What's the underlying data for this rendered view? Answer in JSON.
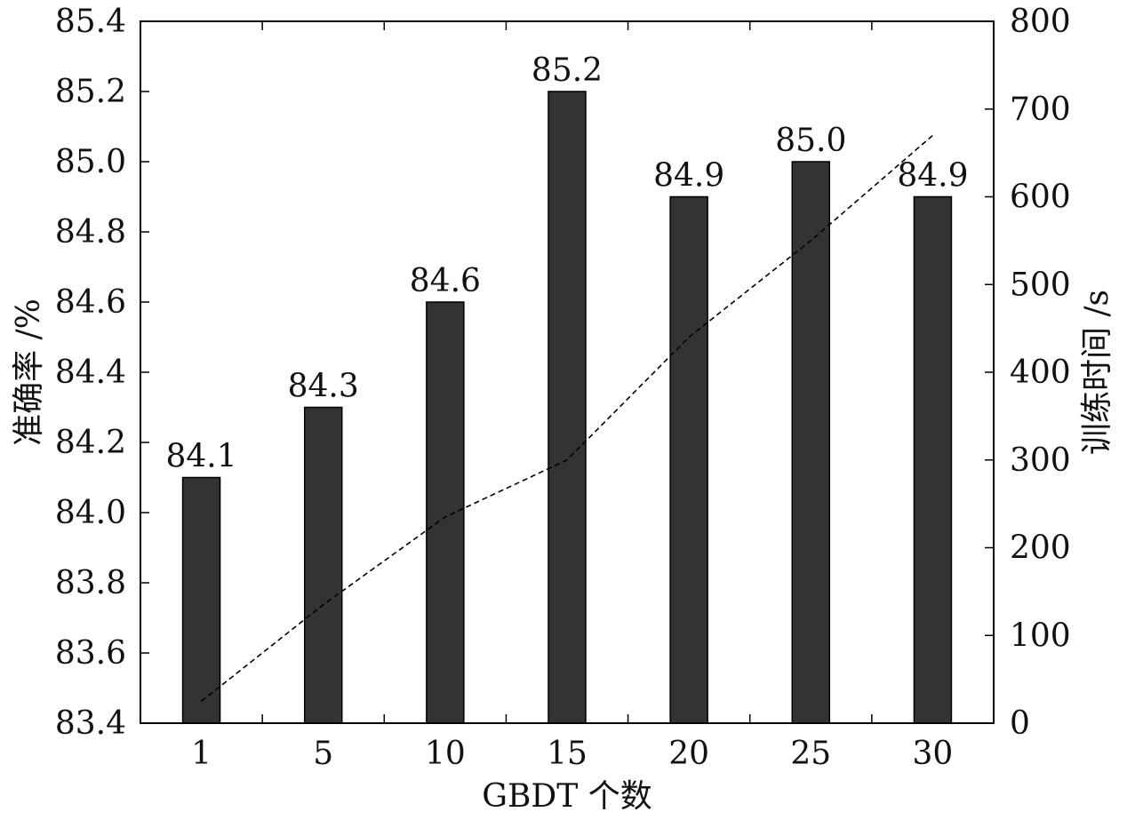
{
  "chart_data": {
    "type": "bar",
    "xlabel": "GBDT 个数",
    "ylabel": "准确率 /%",
    "y2label": "训练时间 /s",
    "categories": [
      "1",
      "5",
      "10",
      "15",
      "20",
      "25",
      "30"
    ],
    "series": [
      {
        "axis": "left",
        "kind": "bar",
        "color": "#333333",
        "values": [
          84.1,
          84.3,
          84.6,
          85.2,
          84.9,
          85.0,
          84.9
        ],
        "labels": [
          "84.1",
          "84.3",
          "84.6",
          "85.2",
          "84.9",
          "85.0",
          "84.9"
        ]
      },
      {
        "axis": "right",
        "kind": "line",
        "style": "dashed",
        "color": "#000000",
        "values": [
          25,
          135,
          235,
          300,
          440,
          550,
          670
        ]
      }
    ],
    "ylim": [
      83.4,
      85.4
    ],
    "yticks": [
      "83.4",
      "83.6",
      "83.8",
      "84.0",
      "84.2",
      "84.4",
      "84.6",
      "84.8",
      "85.0",
      "85.2",
      "85.4"
    ],
    "y2lim": [
      0,
      800
    ],
    "y2ticks": [
      "0",
      "100",
      "200",
      "300",
      "400",
      "500",
      "600",
      "700",
      "800"
    ],
    "grid": false
  }
}
